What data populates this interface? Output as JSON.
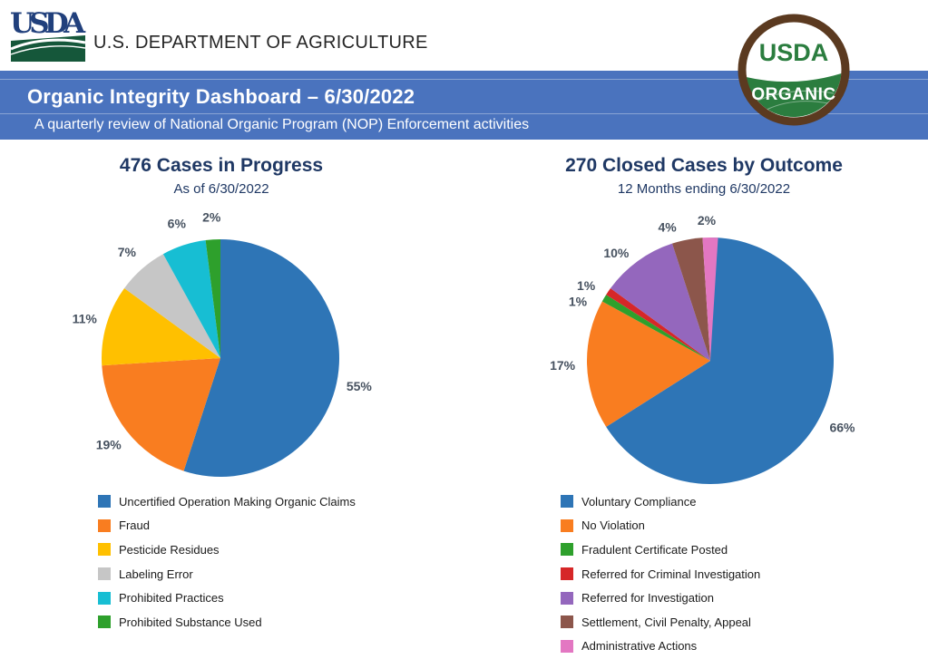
{
  "header": {
    "logo_text": "USDA",
    "dept_title": "U.S. DEPARTMENT OF AGRICULTURE",
    "banner_title": "Organic Integrity Dashboard – 6/30/2022",
    "banner_subtitle": "A quarterly review of National Organic Program (NOP) Enforcement activities",
    "banner_color": "#4A73BE"
  },
  "organic_seal": {
    "top_text": "USDA",
    "bottom_text": "ORGANIC",
    "ring_color": "#5B3A20",
    "green_color": "#2B7D3F"
  },
  "chart_data": [
    {
      "type": "pie",
      "title": "476 Cases in Progress",
      "subtitle": "As of 6/30/2022",
      "total_cases": 476,
      "legend_position": "bottom",
      "categories": [
        "Uncertified Operation Making Organic Claims",
        "Fraud",
        "Pesticide Residues",
        "Labeling Error",
        "Prohibited Practices",
        "Prohibited Substance Used"
      ],
      "values": [
        55,
        19,
        11,
        7,
        6,
        2
      ],
      "value_unit": "%",
      "colors": [
        "#2E75B6",
        "#F97D20",
        "#FFC000",
        "#C6C6C6",
        "#17BED3",
        "#2EA02C"
      ]
    },
    {
      "type": "pie",
      "title": "270 Closed Cases by Outcome",
      "subtitle": "12 Months ending 6/30/2022",
      "total_cases": 270,
      "legend_position": "bottom",
      "categories": [
        "Voluntary Compliance",
        "No Violation",
        "Fradulent Certificate Posted",
        "Referred for Criminal Investigation",
        "Referred for Investigation",
        "Settlement, Civil Penalty, Appeal",
        "Administrative Actions"
      ],
      "values": [
        66,
        17,
        1,
        1,
        10,
        4,
        2
      ],
      "value_unit": "%",
      "colors": [
        "#2E75B6",
        "#F97D20",
        "#2EA02C",
        "#D62728",
        "#9467BD",
        "#8C564B",
        "#E377C2"
      ]
    }
  ]
}
